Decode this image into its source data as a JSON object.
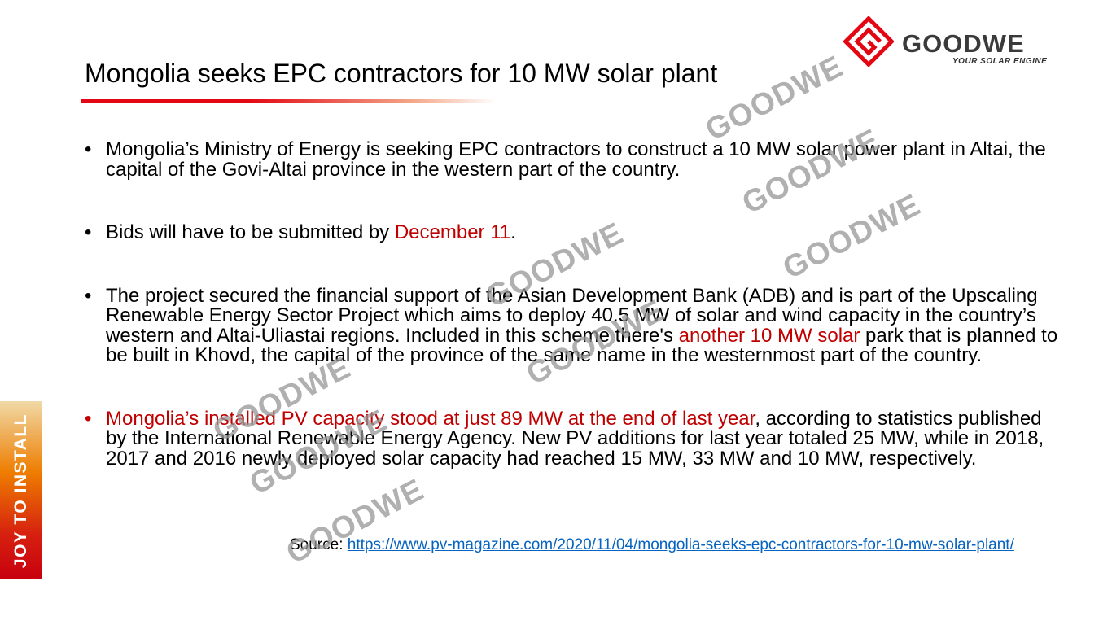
{
  "title": "Mongolia seeks EPC contractors for 10 MW solar plant",
  "logo": {
    "word": "GOODWE",
    "tagline": "YOUR SOLAR ENGINE",
    "brand_color": "#e30613"
  },
  "banner": {
    "text": "JOY TO INSTALL"
  },
  "watermark": "GOODWE",
  "bullets": [
    {
      "parts": [
        {
          "text": "Mongolia’s Ministry of Energy is seeking EPC contractors to construct a 10 MW solar power plant in Altai, the capital of the Govi-Altai province in the western part of the country.",
          "red": false
        }
      ]
    },
    {
      "parts": [
        {
          "text": "Bids will have to be submitted by ",
          "red": false
        },
        {
          "text": "December 11",
          "red": true
        },
        {
          "text": ".",
          "red": false
        }
      ]
    },
    {
      "parts": [
        {
          "text": "The project secured the financial support of the Asian Development Bank (ADB) and is part of the Upscaling Renewable Energy Sector Project which aims to deploy 40.5 MW of solar and wind capacity in the country’s western and Altai-Uliastai regions. Included in this scheme there's ",
          "red": false
        },
        {
          "text": "another 10 MW solar",
          "red": true
        },
        {
          "text": " park that is planned to be built in Khovd, the capital of the province of the same name in the westernmost part of the country.",
          "red": false
        }
      ]
    },
    {
      "parts": [
        {
          "text": "Mongolia’s installed PV capacity stood at just 89 MW at the end of last year",
          "red": true
        },
        {
          "text": ", according to statistics published by the International Renewable Energy Agency. New PV additions for last year totaled 25 MW, while in 2018, 2017 and 2016 newly deployed solar capacity had reached 15 MW, 33 MW and 10 MW, respectively.",
          "red": false
        }
      ]
    }
  ],
  "source": {
    "label": "Source: ",
    "url": "https://www.pv-magazine.com/2020/11/04/mongolia-seeks-epc-contractors-for-10-mw-solar-plant/"
  },
  "colors": {
    "accent_red": "#c00000",
    "link": "#0563c1"
  }
}
